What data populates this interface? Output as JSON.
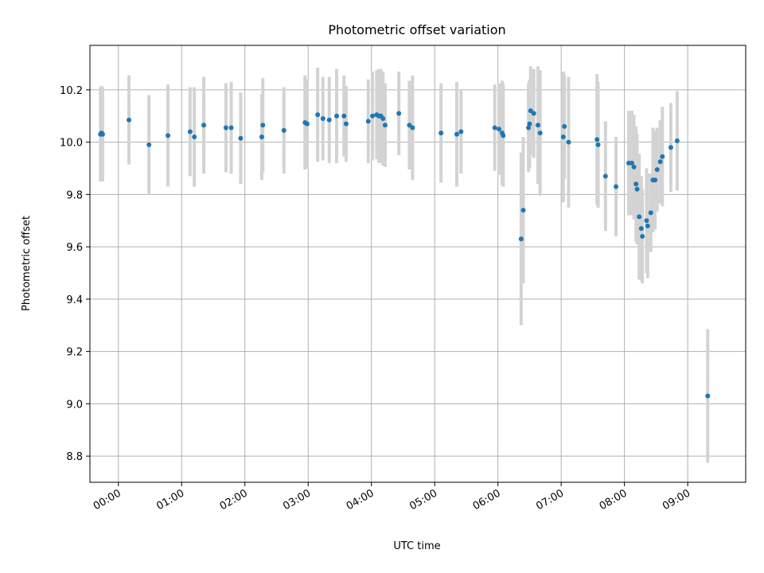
{
  "chart_data": {
    "type": "scatter",
    "title": "Photometric offset variation",
    "xlabel": "UTC time",
    "ylabel": "Photometric offset",
    "x_unit": "UTC time (HH:MM)",
    "xlim": [
      "23:33",
      "09:55"
    ],
    "ylim": [
      8.7,
      10.37
    ],
    "x_ticks": [
      "00:00",
      "01:00",
      "02:00",
      "03:00",
      "04:00",
      "05:00",
      "06:00",
      "07:00",
      "08:00",
      "09:00"
    ],
    "y_ticks": [
      8.8,
      9.0,
      9.2,
      9.4,
      9.6,
      9.8,
      10.0,
      10.2
    ],
    "grid": true,
    "colors": {
      "points": "#1f77b4",
      "error_bars": "#d3d3d3",
      "grid": "#b0b0b0"
    },
    "points": [
      {
        "x": "23:43",
        "y": 10.03,
        "err": 0.18
      },
      {
        "x": "23:44",
        "y": 10.035,
        "err": 0.18
      },
      {
        "x": "23:45",
        "y": 10.03,
        "err": 0.18
      },
      {
        "x": "00:10",
        "y": 10.085,
        "err": 0.17
      },
      {
        "x": "00:29",
        "y": 9.99,
        "err": 0.19
      },
      {
        "x": "00:47",
        "y": 10.025,
        "err": 0.195
      },
      {
        "x": "01:08",
        "y": 10.04,
        "err": 0.17
      },
      {
        "x": "01:12",
        "y": 10.02,
        "err": 0.19
      },
      {
        "x": "01:21",
        "y": 10.065,
        "err": 0.185
      },
      {
        "x": "01:42",
        "y": 10.055,
        "err": 0.17
      },
      {
        "x": "01:47",
        "y": 10.055,
        "err": 0.175
      },
      {
        "x": "01:56",
        "y": 10.015,
        "err": 0.175
      },
      {
        "x": "02:16",
        "y": 10.02,
        "err": 0.165
      },
      {
        "x": "02:17",
        "y": 10.065,
        "err": 0.18
      },
      {
        "x": "02:37",
        "y": 10.045,
        "err": 0.165
      },
      {
        "x": "02:57",
        "y": 10.075,
        "err": 0.18
      },
      {
        "x": "02:59",
        "y": 10.07,
        "err": 0.17
      },
      {
        "x": "03:09",
        "y": 10.105,
        "err": 0.18
      },
      {
        "x": "03:14",
        "y": 10.09,
        "err": 0.16
      },
      {
        "x": "03:20",
        "y": 10.085,
        "err": 0.165
      },
      {
        "x": "03:27",
        "y": 10.1,
        "err": 0.18
      },
      {
        "x": "03:34",
        "y": 10.1,
        "err": 0.155
      },
      {
        "x": "03:36",
        "y": 10.07,
        "err": 0.145
      },
      {
        "x": "03:57",
        "y": 10.08,
        "err": 0.16
      },
      {
        "x": "04:01",
        "y": 10.1,
        "err": 0.17
      },
      {
        "x": "04:05",
        "y": 10.105,
        "err": 0.17
      },
      {
        "x": "04:07",
        "y": 10.1,
        "err": 0.18
      },
      {
        "x": "04:09",
        "y": 10.1,
        "err": 0.18
      },
      {
        "x": "04:11",
        "y": 10.09,
        "err": 0.18
      },
      {
        "x": "04:13",
        "y": 10.065,
        "err": 0.16
      },
      {
        "x": "04:26",
        "y": 10.11,
        "err": 0.16
      },
      {
        "x": "04:36",
        "y": 10.065,
        "err": 0.17
      },
      {
        "x": "04:39",
        "y": 10.055,
        "err": 0.2
      },
      {
        "x": "05:06",
        "y": 10.035,
        "err": 0.19
      },
      {
        "x": "05:21",
        "y": 10.03,
        "err": 0.2
      },
      {
        "x": "05:25",
        "y": 10.04,
        "err": 0.16
      },
      {
        "x": "05:57",
        "y": 10.055,
        "err": 0.165
      },
      {
        "x": "06:01",
        "y": 10.05,
        "err": 0.175
      },
      {
        "x": "06:04",
        "y": 10.035,
        "err": 0.2
      },
      {
        "x": "06:05",
        "y": 10.025,
        "err": 0.195
      },
      {
        "x": "06:22",
        "y": 9.63,
        "err": 0.33
      },
      {
        "x": "06:24",
        "y": 9.74,
        "err": 0.28
      },
      {
        "x": "06:29",
        "y": 10.055,
        "err": 0.17
      },
      {
        "x": "06:30",
        "y": 10.07,
        "err": 0.17
      },
      {
        "x": "06:31",
        "y": 10.12,
        "err": 0.17
      },
      {
        "x": "06:34",
        "y": 10.11,
        "err": 0.17
      },
      {
        "x": "06:38",
        "y": 10.065,
        "err": 0.225
      },
      {
        "x": "06:40",
        "y": 10.035,
        "err": 0.24
      },
      {
        "x": "07:02",
        "y": 10.02,
        "err": 0.25
      },
      {
        "x": "07:03",
        "y": 10.06,
        "err": 0.2
      },
      {
        "x": "07:07",
        "y": 10.0,
        "err": 0.25
      },
      {
        "x": "07:34",
        "y": 10.01,
        "err": 0.25
      },
      {
        "x": "07:35",
        "y": 9.99,
        "err": 0.24
      },
      {
        "x": "07:42",
        "y": 9.87,
        "err": 0.21
      },
      {
        "x": "07:52",
        "y": 9.83,
        "err": 0.19
      },
      {
        "x": "08:04",
        "y": 9.92,
        "err": 0.2
      },
      {
        "x": "08:07",
        "y": 9.92,
        "err": 0.2
      },
      {
        "x": "08:09",
        "y": 9.905,
        "err": 0.2
      },
      {
        "x": "08:11",
        "y": 9.84,
        "err": 0.22
      },
      {
        "x": "08:12",
        "y": 9.82,
        "err": 0.21
      },
      {
        "x": "08:14",
        "y": 9.715,
        "err": 0.24
      },
      {
        "x": "08:16",
        "y": 9.67,
        "err": 0.2
      },
      {
        "x": "08:17",
        "y": 9.64,
        "err": 0.18
      },
      {
        "x": "08:21",
        "y": 9.7,
        "err": 0.2
      },
      {
        "x": "08:22",
        "y": 9.68,
        "err": 0.2
      },
      {
        "x": "08:25",
        "y": 9.73,
        "err": 0.15
      },
      {
        "x": "08:27",
        "y": 9.855,
        "err": 0.2
      },
      {
        "x": "08:29",
        "y": 9.855,
        "err": 0.19
      },
      {
        "x": "08:31",
        "y": 9.895,
        "err": 0.16
      },
      {
        "x": "08:34",
        "y": 9.925,
        "err": 0.16
      },
      {
        "x": "08:36",
        "y": 9.945,
        "err": 0.19
      },
      {
        "x": "08:44",
        "y": 9.98,
        "err": 0.17
      },
      {
        "x": "08:50",
        "y": 10.005,
        "err": 0.19
      },
      {
        "x": "09:19",
        "y": 9.03,
        "err": 0.255
      }
    ]
  }
}
